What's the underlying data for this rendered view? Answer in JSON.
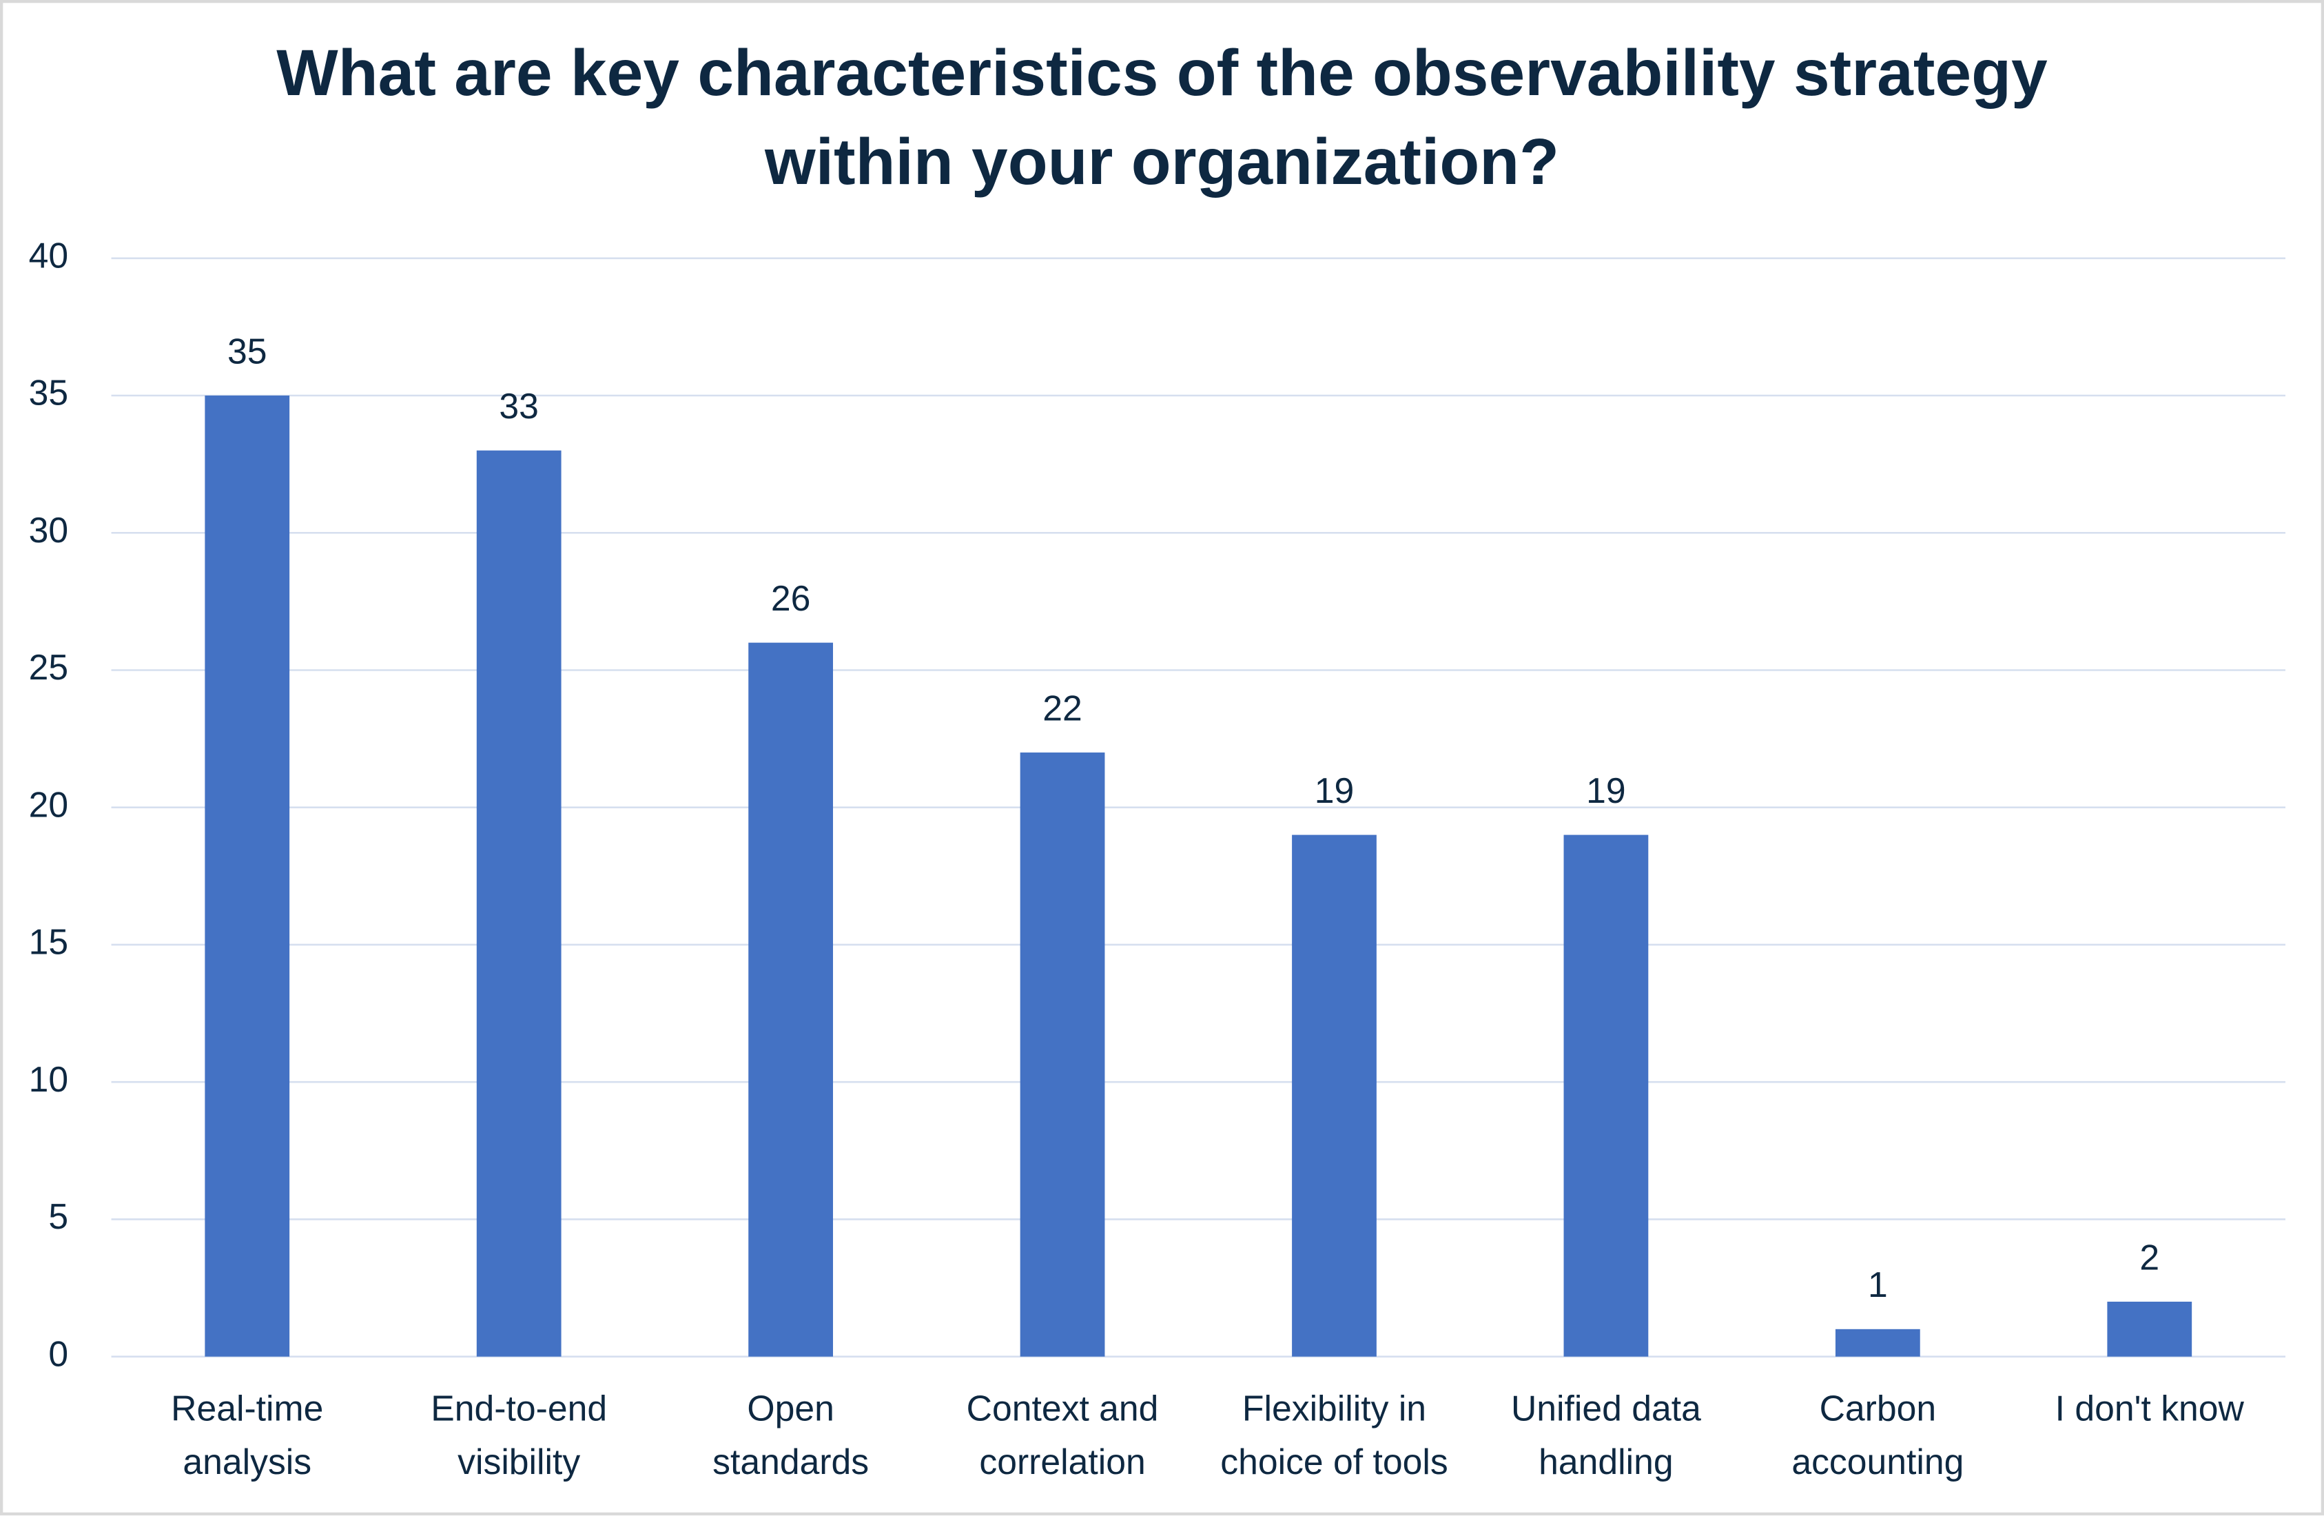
{
  "chart_data": {
    "type": "bar",
    "title": "What are key characteristics of the observability strategy within your organization?",
    "categories": [
      "Real-time analysis",
      "End-to-end visibility",
      "Open standards",
      "Context and correlation",
      "Flexibility in choice of tools",
      "Unified data handling",
      "Carbon accounting",
      "I don't know"
    ],
    "values": [
      35,
      33,
      26,
      22,
      19,
      19,
      1,
      2
    ],
    "color": "#4472c4",
    "ylim": [
      0,
      40
    ],
    "yticks": [
      0,
      5,
      10,
      15,
      20,
      25,
      30,
      35,
      40
    ],
    "grid": true
  }
}
